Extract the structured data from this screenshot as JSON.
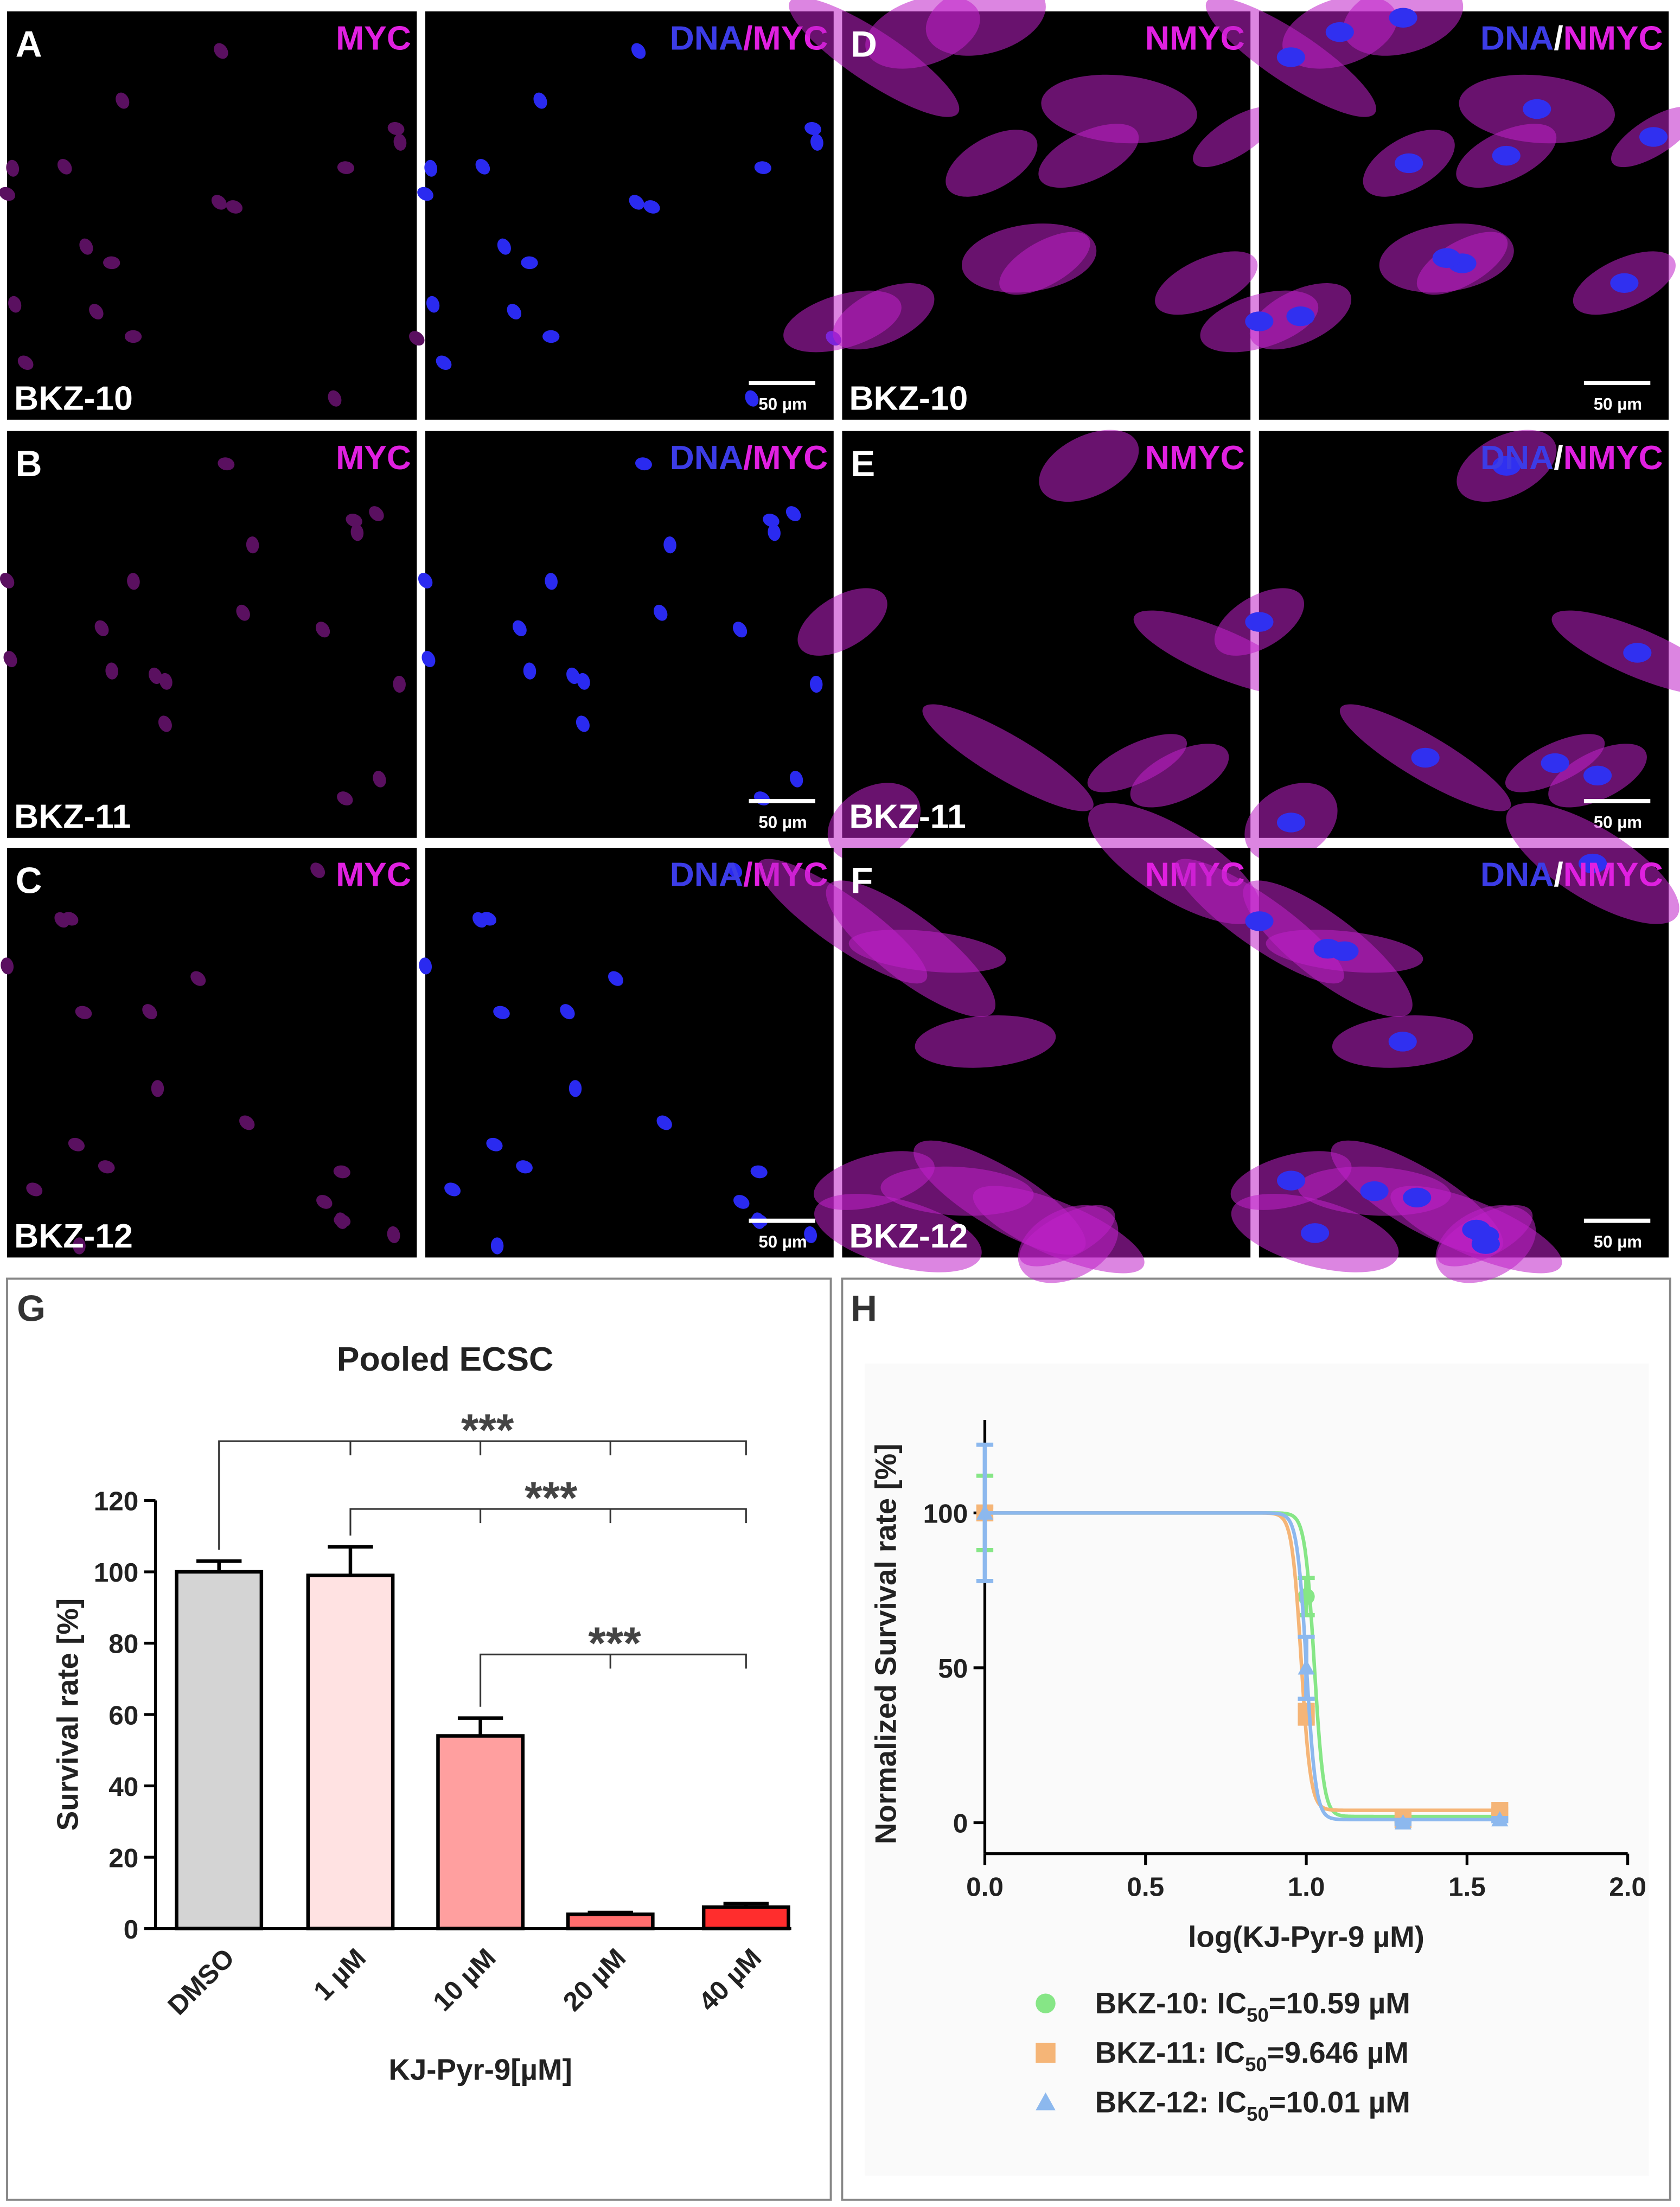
{
  "images": {
    "rows": [
      [
        {
          "letter": "A",
          "channel": [
            {
              "text": "MYC",
              "color": "#e020e0"
            }
          ],
          "cell_line": "BKZ-10"
        },
        {
          "channel": [
            {
              "text": "DNA",
              "color": "#3c3ce6"
            },
            {
              "text": "/",
              "color": "#e020e0"
            },
            {
              "text": "MYC",
              "color": "#e020e0"
            }
          ],
          "scale_bar": "50 µm"
        },
        {
          "letter": "D",
          "channel": [
            {
              "text": "NMYC",
              "color": "#e020e0"
            }
          ],
          "cell_line": "BKZ-10"
        },
        {
          "channel": [
            {
              "text": "DNA",
              "color": "#3c3ce6"
            },
            {
              "text": "/",
              "color": "#ffffff"
            },
            {
              "text": "NMYC",
              "color": "#e020e0"
            }
          ],
          "scale_bar": "50 µm"
        }
      ],
      [
        {
          "letter": "B",
          "channel": [
            {
              "text": "MYC",
              "color": "#e020e0"
            }
          ],
          "cell_line": "BKZ-11"
        },
        {
          "channel": [
            {
              "text": "DNA",
              "color": "#3c3ce6"
            },
            {
              "text": "/",
              "color": "#e020e0"
            },
            {
              "text": "MYC",
              "color": "#e020e0"
            }
          ],
          "scale_bar": "50 µm"
        },
        {
          "letter": "E",
          "channel": [
            {
              "text": "NMYC",
              "color": "#e020e0"
            }
          ],
          "cell_line": "BKZ-11"
        },
        {
          "channel": [
            {
              "text": "DNA",
              "color": "#3c3ce6"
            },
            {
              "text": "/",
              "color": "#ffffff"
            },
            {
              "text": "NMYC",
              "color": "#e020e0"
            }
          ],
          "scale_bar": "50 µm"
        }
      ],
      [
        {
          "letter": "C",
          "channel": [
            {
              "text": "MYC",
              "color": "#e020e0"
            }
          ],
          "cell_line": "BKZ-12"
        },
        {
          "channel": [
            {
              "text": "DNA",
              "color": "#3c3ce6"
            },
            {
              "text": "/",
              "color": "#e020e0"
            },
            {
              "text": "MYC",
              "color": "#e020e0"
            }
          ],
          "scale_bar": "50 µm"
        },
        {
          "letter": "F",
          "channel": [
            {
              "text": "NMYC",
              "color": "#e020e0"
            }
          ],
          "cell_line": "BKZ-12"
        },
        {
          "channel": [
            {
              "text": "DNA",
              "color": "#3c3ce6"
            },
            {
              "text": "/",
              "color": "#ffffff"
            },
            {
              "text": "NMYC",
              "color": "#e020e0"
            }
          ],
          "scale_bar": "50 µm"
        }
      ]
    ]
  },
  "chart_data": [
    {
      "type": "bar",
      "panel": "G",
      "title": "Pooled ECSC",
      "x_label": "KJ-Pyr-9[µM]",
      "y_label": "Survival rate [%]",
      "categories": [
        "DMSO",
        "1 µM",
        "10 µM",
        "20 µM",
        "40 µM"
      ],
      "values": [
        100,
        99,
        54,
        4,
        6
      ],
      "errors": [
        3,
        8,
        5,
        0.5,
        1
      ],
      "colors": [
        "#d4d4d4",
        "#ffe2e2",
        "#ff9f9f",
        "#ff6e6e",
        "#ff2d2d"
      ],
      "ylim": [
        0,
        120
      ],
      "yticks": [
        0,
        20,
        40,
        60,
        80,
        100,
        120
      ],
      "annotations": [
        "***",
        "***",
        "***"
      ]
    },
    {
      "type": "line",
      "panel": "H",
      "x_label": "log(KJ-Pyr-9 µM)",
      "y_label": "Normalized Survival rate [%]",
      "x": [
        0,
        1.0,
        1.301,
        1.602
      ],
      "legend_text": ": IC",
      "legend_sub": "50",
      "series": [
        {
          "name": "BKZ-10",
          "color": "#86e686",
          "marker": "circle",
          "values": [
            100,
            73,
            1,
            2
          ],
          "errors": [
            12,
            6,
            0.5,
            0.5
          ],
          "ic50": 10.59,
          "ic50_label": "=10.59 µM"
        },
        {
          "name": "BKZ-11",
          "color": "#f5b577",
          "marker": "square",
          "values": [
            100,
            35,
            1,
            4
          ],
          "errors": [
            2,
            3,
            0.5,
            0.5
          ],
          "ic50": 9.646,
          "ic50_label": "=9.646 µM"
        },
        {
          "name": "BKZ-12",
          "color": "#8cb8ee",
          "marker": "triangle",
          "values": [
            100,
            50,
            0,
            1
          ],
          "errors": [
            22,
            10,
            0.5,
            0.5
          ],
          "ic50": 10.01,
          "ic50_label": "=10.01 µM"
        }
      ],
      "xlim": [
        0,
        2
      ],
      "ylim": [
        -10,
        130
      ],
      "xticks": [
        {
          "value": 0,
          "label": "0.0"
        },
        {
          "value": 0.5,
          "label": "0.5"
        },
        {
          "value": 1,
          "label": "1.0"
        },
        {
          "value": 1.5,
          "label": "1.5"
        },
        {
          "value": 2,
          "label": "2.0"
        }
      ],
      "yticks": [
        0,
        50,
        100
      ]
    }
  ]
}
